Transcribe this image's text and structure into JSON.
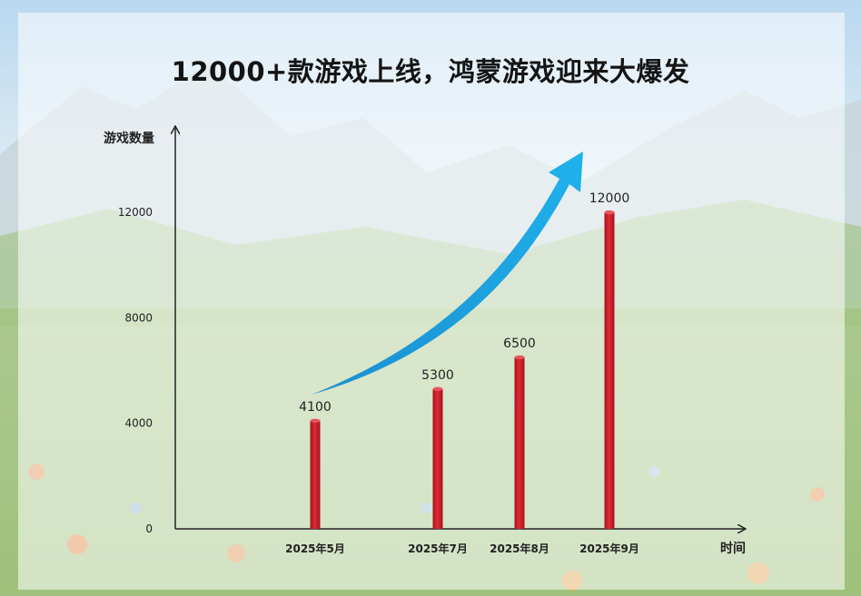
{
  "chart_data": {
    "type": "bar",
    "title": "12000+款游戏上线，鸿蒙游戏迎来大爆发",
    "ylabel": "游戏数量",
    "xlabel": "时间",
    "categories": [
      "2025年5月",
      "2025年7月",
      "2025年8月",
      "2025年9月"
    ],
    "values": [
      4100,
      5300,
      6500,
      12000
    ],
    "data_labels": [
      "4100",
      "5300",
      "6500",
      "12000"
    ],
    "y_ticks": [
      0,
      4000,
      8000,
      12000
    ],
    "ylim": [
      0,
      15200
    ],
    "grid": false,
    "legend": "none",
    "bar_color": "#d01e2c",
    "arrow_color": "#1aa4e0",
    "annotation": "upward trend arrow"
  }
}
